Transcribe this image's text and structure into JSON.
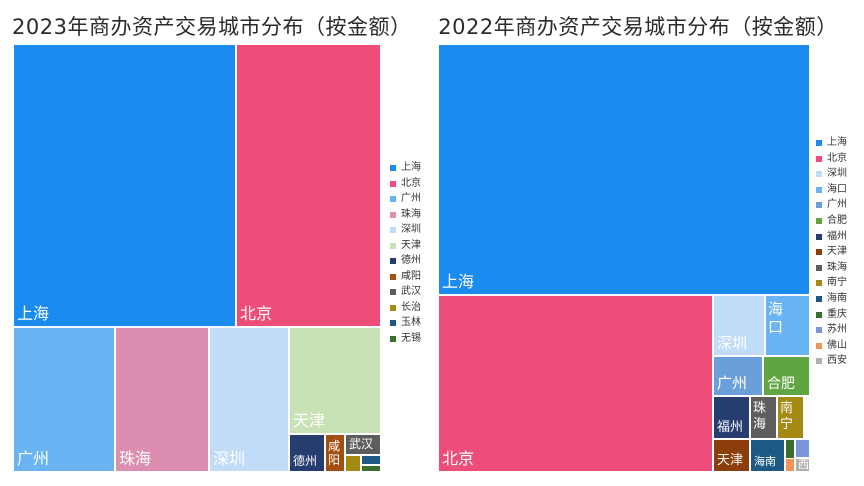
{
  "chart_data": [
    {
      "type": "treemap",
      "title": "2023年商办资产交易城市分布（按金额）",
      "legend_position": "right",
      "series": [
        {
          "name": "上海",
          "value": 37.0,
          "color": "#1a8cf0"
        },
        {
          "name": "北京",
          "value": 22.5,
          "color": "#ef4d79"
        },
        {
          "name": "广州",
          "value": 9.6,
          "color": "#6ab4f4"
        },
        {
          "name": "珠海",
          "value": 8.0,
          "color": "#dc8eb1"
        },
        {
          "name": "深圳",
          "value": 6.5,
          "color": "#c0dcf8"
        },
        {
          "name": "天津",
          "value": 7.6,
          "color": "#c8e1b5"
        },
        {
          "name": "德州",
          "value": 2.8,
          "color": "#253e6f"
        },
        {
          "name": "咸阳",
          "value": 1.5,
          "color": "#a44f12"
        },
        {
          "name": "武汉",
          "value": 1.1,
          "color": "#5d5d5d"
        },
        {
          "name": "长治",
          "value": 0.7,
          "color": "#a48a12"
        },
        {
          "name": "玉林",
          "value": 0.4,
          "color": "#1e5985"
        },
        {
          "name": "无锡",
          "value": 0.3,
          "color": "#3b6e2a"
        }
      ]
    },
    {
      "type": "treemap",
      "title": "2022年商办资产交易城市分布（按金额）",
      "legend_position": "right",
      "series": [
        {
          "name": "上海",
          "value": 56.0,
          "color": "#1a8cf0"
        },
        {
          "name": "北京",
          "value": 25.5,
          "color": "#ef4d79"
        },
        {
          "name": "深圳",
          "value": 3.7,
          "color": "#c0dcf8"
        },
        {
          "name": "海口",
          "value": 2.9,
          "color": "#6ab4f4"
        },
        {
          "name": "广州",
          "value": 2.4,
          "color": "#6a9fd9"
        },
        {
          "name": "合肥",
          "value": 2.3,
          "color": "#61a543"
        },
        {
          "name": "福州",
          "value": 1.8,
          "color": "#253e6f"
        },
        {
          "name": "天津",
          "value": 1.5,
          "color": "#8c3e0a"
        },
        {
          "name": "珠海",
          "value": 1.3,
          "color": "#5d5d5d"
        },
        {
          "name": "南宁",
          "value": 1.3,
          "color": "#a48a12"
        },
        {
          "name": "海南",
          "value": 1.0,
          "color": "#1e5985"
        },
        {
          "name": "重庆",
          "value": 0.5,
          "color": "#3b6e2a"
        },
        {
          "name": "苏州",
          "value": 0.4,
          "color": "#7a95d8"
        },
        {
          "name": "佛山",
          "value": 0.3,
          "color": "#f0955a"
        },
        {
          "name": "西安",
          "value": 0.2,
          "color": "#b0b0b0"
        }
      ],
      "tile_labels_shown": [
        "上海",
        "北京",
        "深圳",
        "海口",
        "广州",
        "合肥",
        "福州",
        "珠海",
        "南宁",
        "天津",
        "海南",
        "西"
      ]
    }
  ]
}
